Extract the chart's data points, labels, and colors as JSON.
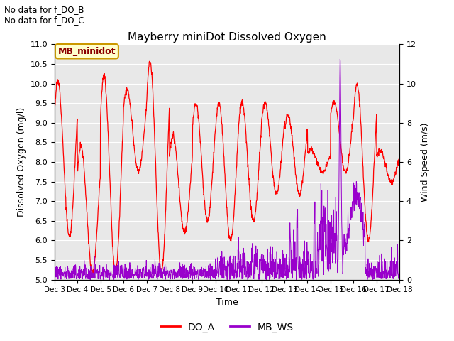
{
  "title": "Mayberry miniDot Dissolved Oxygen",
  "xlabel": "Time",
  "ylabel_left": "Dissolved Oxygen (mg/l)",
  "ylabel_right": "Wind Speed (m/s)",
  "annotation_lines": [
    "No data for f_DO_B",
    "No data for f_DO_C"
  ],
  "legend_label": "MB_minidot",
  "ylim_left": [
    5.0,
    11.0
  ],
  "ylim_right": [
    0,
    12
  ],
  "yticks_left": [
    5.0,
    5.5,
    6.0,
    6.5,
    7.0,
    7.5,
    8.0,
    8.5,
    9.0,
    9.5,
    10.0,
    10.5,
    11.0
  ],
  "yticks_right": [
    0,
    2,
    4,
    6,
    8,
    10,
    12
  ],
  "xtick_labels": [
    "Dec 3",
    "Dec 4",
    "Dec 5",
    "Dec 6",
    "Dec 7",
    "Dec 8",
    "Dec 9",
    "Dec 10",
    "Dec 11",
    "Dec 12",
    "Dec 13",
    "Dec 14",
    "Dec 15",
    "Dec 16",
    "Dec 17",
    "Dec 18"
  ],
  "n_days": 15,
  "bg_color": "#e8e8e8",
  "do_color": "#ff0000",
  "ws_color": "#9900cc",
  "legend_entries": [
    "DO_A",
    "MB_WS"
  ],
  "legend_colors": [
    "#ff0000",
    "#9900cc"
  ],
  "do_peaks": [
    10.05,
    8.4,
    10.2,
    9.83,
    10.55,
    8.65,
    9.5,
    9.5,
    9.5,
    9.5,
    9.2,
    8.3,
    9.55,
    10.0,
    8.3
  ],
  "do_mins": [
    6.1,
    5.2,
    5.2,
    7.75,
    5.2,
    6.2,
    6.5,
    6.0,
    6.5,
    7.2,
    7.2,
    7.75,
    7.75,
    6.0,
    7.5
  ],
  "do_phase": [
    0.15,
    0.15,
    0.15,
    0.15,
    0.15,
    0.15,
    0.15,
    0.15,
    0.15,
    0.15,
    0.15,
    0.15,
    0.15,
    0.15,
    0.15
  ]
}
